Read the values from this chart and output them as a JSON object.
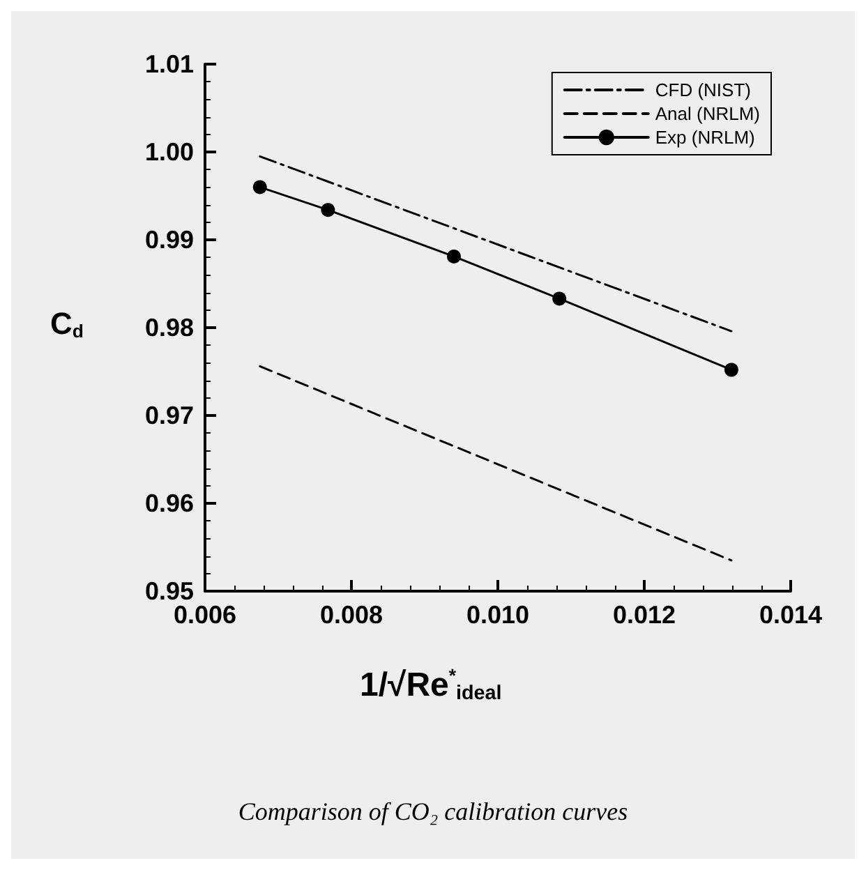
{
  "chart_data": {
    "type": "line",
    "xlabel": "1/√Re$^{*}$$_{ideal}$",
    "ylabel": "C$_{d}$",
    "annotations": [
      "Comparison of CO₂ calibration curves"
    ],
    "xlim": [
      0.006,
      0.014
    ],
    "xticks": [
      0.006,
      0.008,
      {
        "value": 0.01,
        "label": "0.010"
      },
      0.012,
      0.014
    ],
    "ylim": [
      0.95,
      1.01
    ],
    "yticks": [
      0.95,
      0.96,
      0.97,
      0.98,
      0.99,
      {
        "value": 1,
        "label": "1.00"
      },
      1.01
    ],
    "grid": false,
    "legend": "top right",
    "series": [
      {
        "name": "CFD (NIST)",
        "color": "#000000",
        "line_style": "dashdot",
        "marker": "none",
        "x": [
          0.00675,
          0.01319
        ],
        "values": [
          0.9995,
          0.9796
        ]
      },
      {
        "name": "Anal (NRLM)",
        "color": "#000000",
        "line_style": "dashed",
        "marker": "none",
        "x": [
          0.00675,
          0.01319
        ],
        "values": [
          0.9756,
          0.9535
        ]
      },
      {
        "name": "Exp (NRLM)",
        "color": "#000000",
        "line_style": "solid",
        "marker": "circle",
        "x": [
          0.00675,
          0.00768,
          0.0094,
          0.01084,
          0.01319
        ],
        "values": [
          0.996,
          0.9934,
          0.9881,
          0.9833,
          0.9752
        ]
      }
    ]
  }
}
